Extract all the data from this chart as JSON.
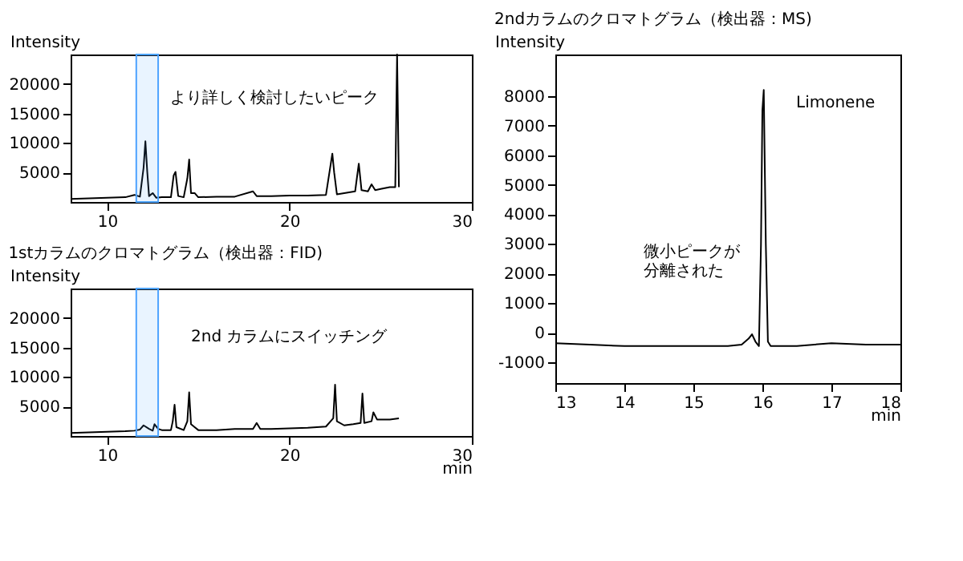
{
  "chart_data": [
    {
      "type": "line",
      "ylabel": "Intensity",
      "x": [
        8,
        9,
        10,
        11,
        11.5,
        11.8,
        12.0,
        12.1,
        12.2,
        12.3,
        12.5,
        12.7,
        13.0,
        13.5,
        13.65,
        13.75,
        13.9,
        14.2,
        14.4,
        14.5,
        14.6,
        14.8,
        15.0,
        16,
        17,
        18.0,
        18.2,
        18.4,
        19,
        20,
        21,
        22,
        22.35,
        22.45,
        22.6,
        23,
        23.6,
        23.8,
        23.95,
        24.3,
        24.5,
        24.7,
        25,
        25.5,
        25.8,
        25.9,
        26.0
      ],
      "series": [
        {
          "color": "#000000",
          "values": [
            500,
            600,
            700,
            800,
            1200,
            900,
            5800,
            10300,
            5200,
            1000,
            1500,
            700,
            800,
            800,
            4500,
            5100,
            1000,
            800,
            4000,
            7200,
            1500,
            1500,
            800,
            900,
            900,
            1800,
            1000,
            1000,
            1000,
            1100,
            1100,
            1200,
            8200,
            5000,
            1300,
            1500,
            1800,
            6500,
            2000,
            1800,
            3000,
            2000,
            2200,
            2500,
            2500,
            25000,
            2500
          ]
        }
      ],
      "xlim": [
        8,
        30
      ],
      "xticks": [
        10,
        20,
        30
      ],
      "ylim": [
        0,
        25000
      ],
      "yticks": [
        5000,
        10000,
        15000,
        20000
      ],
      "bands": [
        {
          "axis": "x",
          "from": 11.6,
          "to": 12.8,
          "color": "#4da3ff"
        }
      ],
      "annotations": [
        "より詳しく検討したいピーク"
      ]
    },
    {
      "type": "line",
      "title": "1stカラムのクロマトグラム（検出器：FID)",
      "ylabel": "Intensity",
      "xlabel": "min",
      "x": [
        8,
        9,
        10,
        11,
        11.5,
        11.8,
        12.0,
        12.3,
        12.5,
        12.6,
        12.8,
        13.0,
        13.5,
        13.6,
        13.7,
        13.8,
        14.2,
        14.4,
        14.5,
        14.6,
        14.8,
        15,
        16,
        17,
        18,
        18.2,
        18.4,
        19,
        20,
        21,
        22,
        22.4,
        22.5,
        22.6,
        23,
        23.5,
        23.9,
        24.0,
        24.1,
        24.5,
        24.6,
        24.8,
        25.5,
        26.0
      ],
      "series": [
        {
          "color": "#000000",
          "values": [
            500,
            600,
            700,
            800,
            900,
            1100,
            1800,
            1200,
            900,
            2000,
            1200,
            1000,
            1000,
            2500,
            5300,
            1500,
            1000,
            2500,
            7400,
            2000,
            1500,
            1000,
            1000,
            1200,
            1200,
            2200,
            1200,
            1200,
            1300,
            1400,
            1600,
            3000,
            8700,
            2500,
            1800,
            2000,
            2200,
            7200,
            2200,
            2500,
            4000,
            2800,
            2800,
            3000
          ]
        }
      ],
      "xlim": [
        8,
        30
      ],
      "xticks": [
        10,
        20,
        30
      ],
      "ylim": [
        0,
        25000
      ],
      "yticks": [
        5000,
        10000,
        15000,
        20000
      ],
      "bands": [
        {
          "axis": "x",
          "from": 11.6,
          "to": 12.8,
          "color": "#4da3ff"
        }
      ],
      "annotations": [
        "2nd カラムにスイッチング"
      ]
    },
    {
      "type": "line",
      "title": "2ndカラムのクロマトグラム（検出器：MS)",
      "ylabel": "Intensity",
      "xlabel": "min",
      "x": [
        13,
        13.5,
        14,
        14.5,
        15,
        15.5,
        15.7,
        15.8,
        15.85,
        15.9,
        15.95,
        15.98,
        16.0,
        16.02,
        16.05,
        16.08,
        16.12,
        16.2,
        16.5,
        17,
        17.5,
        18
      ],
      "series": [
        {
          "color": "#000000",
          "values": [
            -350,
            -400,
            -450,
            -450,
            -450,
            -450,
            -400,
            -200,
            -50,
            -300,
            -450,
            3000,
            7500,
            8200,
            3000,
            -300,
            -450,
            -450,
            -450,
            -350,
            -400,
            -400
          ]
        }
      ],
      "xlim": [
        13,
        18
      ],
      "xticks": [
        13,
        14,
        15,
        16,
        17,
        18
      ],
      "ylim": [
        -1700,
        9400
      ],
      "yticks": [
        -1000,
        0,
        1000,
        2000,
        3000,
        4000,
        5000,
        6000,
        7000,
        8000
      ],
      "annotations": [
        "Limonene",
        "微小ピークが分離された"
      ]
    }
  ]
}
